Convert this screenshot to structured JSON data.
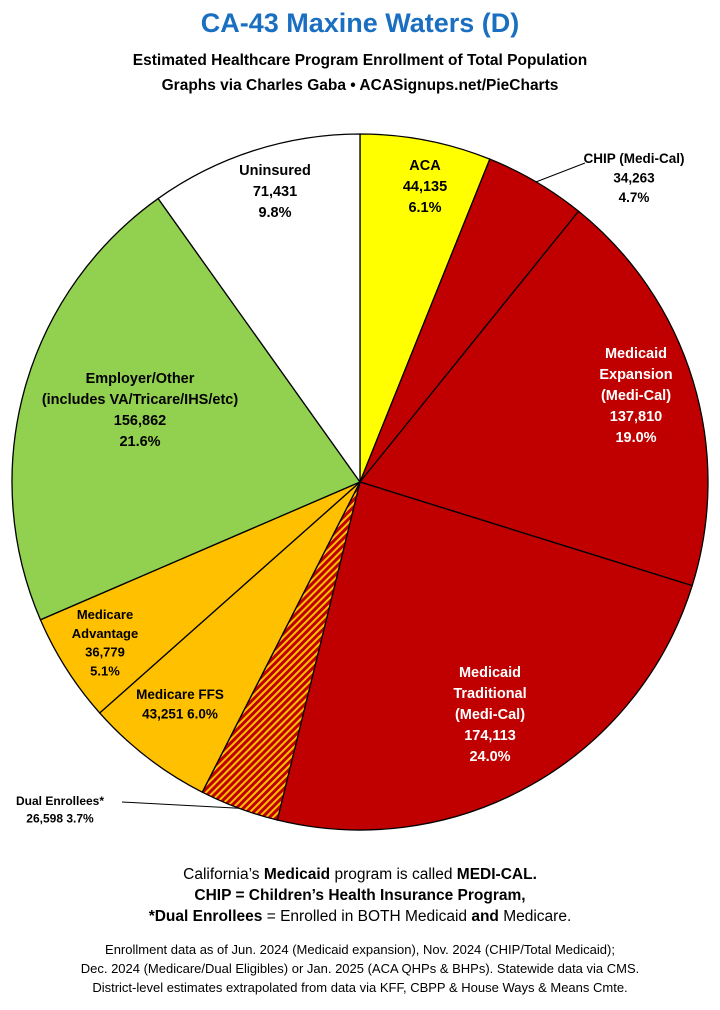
{
  "chart_data": {
    "type": "pie",
    "title": "CA-43 Maxine Waters (D)",
    "subtitle": "Estimated Healthcare Program Enrollment of Total Population",
    "source_line": "Graphs via Charles Gaba  •  ACASignups.net/PieCharts",
    "start": "12 o'clock",
    "direction": "clockwise",
    "slices": [
      {
        "label": "ACA",
        "value": 44135,
        "percent": "6.1%",
        "color": "#ffff00",
        "lines": [
          "ACA",
          "44,135",
          "6.1%"
        ],
        "text_color": "#000000"
      },
      {
        "label": "CHIP (Medi-Cal)",
        "value": 34263,
        "percent": "4.7%",
        "color": "#c00000",
        "lines": [
          "CHIP (Medi-Cal)",
          "34,263",
          "4.7%"
        ],
        "text_color": "#000000",
        "callout": true
      },
      {
        "label": "Medicaid Expansion (Medi-Cal)",
        "value": 137810,
        "percent": "19.0%",
        "color": "#c00000",
        "lines": [
          "Medicaid",
          "Expansion",
          "(Medi-Cal)",
          "137,810",
          "19.0%"
        ],
        "text_color": "#ffffff"
      },
      {
        "label": "Medicaid Traditional (Medi-Cal)",
        "value": 174113,
        "percent": "24.0%",
        "color": "#c00000",
        "lines": [
          "Medicaid",
          "Traditional",
          "(Medi-Cal)",
          "174,113",
          "24.0%"
        ],
        "text_color": "#ffffff"
      },
      {
        "label": "Dual Enrollees*",
        "value": 26598,
        "percent": "3.7%",
        "color": "#c00000",
        "hatch": "#ffc000",
        "lines": [
          "Dual Enrollees*",
          "26,598 3.7%"
        ],
        "text_color": "#000000",
        "callout": true
      },
      {
        "label": "Medicare FFS",
        "value": 43251,
        "percent": "6.0%",
        "color": "#ffc000",
        "lines": [
          "Medicare FFS",
          "43,251 6.0%"
        ],
        "text_color": "#000000"
      },
      {
        "label": "Medicare Advantage",
        "value": 36779,
        "percent": "5.1%",
        "color": "#ffc000",
        "lines": [
          "Medicare",
          "Advantage",
          "36,779",
          "5.1%"
        ],
        "text_color": "#000000"
      },
      {
        "label": "Employer/Other (includes VA/Tricare/IHS/etc)",
        "value": 156862,
        "percent": "21.6%",
        "color": "#92d050",
        "lines": [
          "Employer/Other",
          "(includes VA/Tricare/IHS/etc)",
          "156,862",
          "21.6%"
        ],
        "text_color": "#000000"
      },
      {
        "label": "Uninsured",
        "value": 71431,
        "percent": "9.8%",
        "color": "#ffffff",
        "lines": [
          "Uninsured",
          "71,431",
          "9.8%"
        ],
        "text_color": "#000000"
      }
    ]
  },
  "notes": {
    "line1_a": "California’s ",
    "line1_b": "Medicaid",
    "line1_c": " program is called ",
    "line1_d": "MEDI-CAL.",
    "line2": "CHIP = Children’s Health Insurance Program,",
    "line3_a": "*Dual Enrollees",
    "line3_b": " = Enrolled in BOTH Medicaid ",
    "line3_c": "and",
    "line3_d": " Medicare."
  },
  "footer": {
    "line1": "Enrollment data as of Jun. 2024 (Medicaid expansion), Nov. 2024 (CHIP/Total Medicaid);",
    "line2": "Dec. 2024 (Medicare/Dual Eligibles) or Jan. 2025 (ACA QHPs & BHPs). Statewide data via CMS.",
    "line3": "District-level estimates extrapolated from data via KFF, CBPP & House Ways & Means Cmte."
  }
}
